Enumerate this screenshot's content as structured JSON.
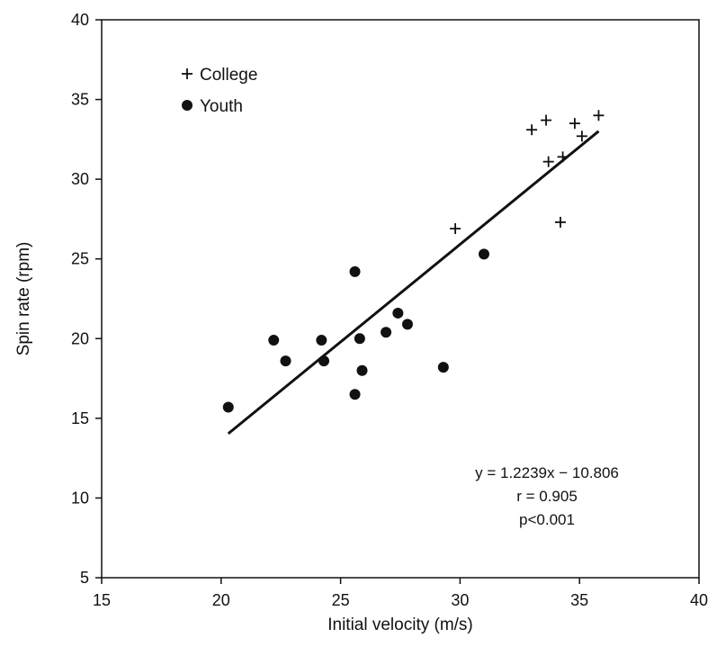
{
  "chart_data": {
    "type": "scatter",
    "title": "",
    "xlabel": "Initial velocity (m/s)",
    "ylabel": "Spin rate (rpm)",
    "xlim": [
      15,
      40
    ],
    "ylim": [
      5,
      40
    ],
    "xticks": [
      15,
      20,
      25,
      30,
      35,
      40
    ],
    "yticks": [
      5,
      10,
      15,
      20,
      25,
      30,
      35,
      40
    ],
    "grid": false,
    "legend": "top-left",
    "series": [
      {
        "name": "College",
        "marker": "plus",
        "points": [
          [
            29.8,
            26.9
          ],
          [
            33.0,
            33.1
          ],
          [
            33.6,
            33.7
          ],
          [
            33.7,
            31.1
          ],
          [
            34.2,
            27.3
          ],
          [
            34.3,
            31.4
          ],
          [
            34.8,
            33.5
          ],
          [
            35.1,
            32.7
          ],
          [
            35.8,
            34.0
          ]
        ]
      },
      {
        "name": "Youth",
        "marker": "circle",
        "points": [
          [
            20.3,
            15.7
          ],
          [
            22.2,
            19.9
          ],
          [
            22.7,
            18.6
          ],
          [
            24.2,
            19.9
          ],
          [
            24.3,
            18.6
          ],
          [
            25.6,
            24.2
          ],
          [
            25.6,
            16.5
          ],
          [
            25.8,
            20.0
          ],
          [
            25.9,
            18.0
          ],
          [
            26.9,
            20.4
          ],
          [
            27.4,
            21.6
          ],
          [
            27.8,
            20.9
          ],
          [
            29.3,
            18.2
          ],
          [
            31.0,
            25.3
          ]
        ]
      }
    ],
    "trendline": {
      "slope": 1.2239,
      "intercept": -10.806,
      "x_range": [
        20.3,
        35.8
      ]
    },
    "annotations": [
      "y = 1.2239x − 10.806",
      "r = 0.905",
      "p<0.001"
    ]
  }
}
